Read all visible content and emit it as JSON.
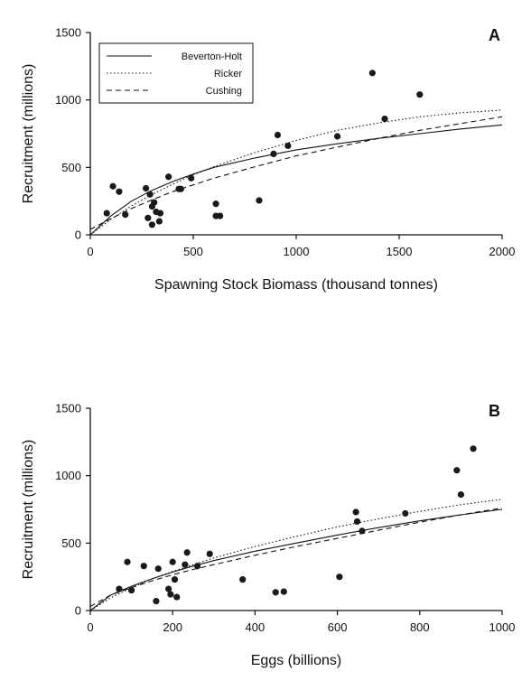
{
  "chart_data": [
    {
      "type": "scatter",
      "panel_label": "A",
      "xlabel": "Spawning Stock Biomass (thousand tonnes)",
      "ylabel": "Recruitment (millions)",
      "xlim": [
        0,
        2000
      ],
      "ylim": [
        0,
        1500
      ],
      "xticks": [
        0,
        500,
        1000,
        1500,
        2000
      ],
      "yticks": [
        0,
        500,
        1000,
        1500
      ],
      "legend": {
        "placement": "top-left",
        "entries": [
          {
            "name": "Beverton-Holt",
            "style": "solid"
          },
          {
            "name": "Ricker",
            "style": "dotted"
          },
          {
            "name": "Cushing",
            "style": "dashed"
          }
        ]
      },
      "points": [
        [
          80,
          160
        ],
        [
          110,
          360
        ],
        [
          140,
          320
        ],
        [
          170,
          150
        ],
        [
          270,
          345
        ],
        [
          280,
          125
        ],
        [
          290,
          300
        ],
        [
          300,
          75
        ],
        [
          300,
          210
        ],
        [
          310,
          240
        ],
        [
          320,
          170
        ],
        [
          335,
          100
        ],
        [
          340,
          160
        ],
        [
          380,
          430
        ],
        [
          430,
          340
        ],
        [
          440,
          340
        ],
        [
          490,
          420
        ],
        [
          610,
          230
        ],
        [
          610,
          140
        ],
        [
          630,
          140
        ],
        [
          820,
          255
        ],
        [
          890,
          600
        ],
        [
          910,
          740
        ],
        [
          960,
          660
        ],
        [
          1200,
          730
        ],
        [
          1370,
          1200
        ],
        [
          1430,
          860
        ],
        [
          1600,
          1040
        ]
      ],
      "curves": [
        {
          "name": "Beverton-Holt",
          "x": [
            0,
            100,
            200,
            300,
            400,
            500,
            600,
            800,
            1000,
            1200,
            1400,
            1600,
            1800,
            2000
          ],
          "y": [
            0,
            140,
            250,
            330,
            395,
            450,
            500,
            570,
            630,
            675,
            715,
            750,
            785,
            815
          ]
        },
        {
          "name": "Ricker",
          "x": [
            0,
            100,
            200,
            300,
            400,
            500,
            600,
            800,
            1000,
            1200,
            1400,
            1600,
            1800,
            2000
          ],
          "y": [
            0,
            115,
            215,
            300,
            375,
            445,
            505,
            610,
            700,
            775,
            830,
            875,
            905,
            925
          ]
        },
        {
          "name": "Cushing",
          "x": [
            0,
            100,
            200,
            300,
            400,
            500,
            600,
            800,
            1000,
            1200,
            1400,
            1600,
            1800,
            2000
          ],
          "y": [
            40,
            120,
            195,
            260,
            320,
            370,
            420,
            505,
            585,
            650,
            715,
            775,
            825,
            875
          ]
        }
      ]
    },
    {
      "type": "scatter",
      "panel_label": "B",
      "xlabel": "Eggs (billions)",
      "ylabel": "Recruitment (millions)",
      "xlim": [
        0,
        1000
      ],
      "ylim": [
        0,
        1500
      ],
      "xticks": [
        0,
        200,
        400,
        600,
        800,
        1000
      ],
      "yticks": [
        0,
        500,
        1000,
        1500
      ],
      "points": [
        [
          70,
          160
        ],
        [
          90,
          360
        ],
        [
          100,
          150
        ],
        [
          130,
          330
        ],
        [
          160,
          70
        ],
        [
          165,
          310
        ],
        [
          190,
          160
        ],
        [
          195,
          120
        ],
        [
          200,
          360
        ],
        [
          205,
          230
        ],
        [
          210,
          100
        ],
        [
          230,
          340
        ],
        [
          235,
          430
        ],
        [
          260,
          330
        ],
        [
          290,
          420
        ],
        [
          370,
          230
        ],
        [
          450,
          135
        ],
        [
          470,
          140
        ],
        [
          605,
          250
        ],
        [
          645,
          730
        ],
        [
          648,
          660
        ],
        [
          660,
          590
        ],
        [
          765,
          720
        ],
        [
          890,
          1040
        ],
        [
          900,
          860
        ],
        [
          930,
          1200
        ]
      ],
      "curves": [
        {
          "name": "Beverton-Holt",
          "x": [
            0,
            50,
            100,
            150,
            200,
            250,
            300,
            400,
            500,
            600,
            700,
            800,
            900,
            1000
          ],
          "y": [
            0,
            115,
            180,
            235,
            285,
            330,
            370,
            440,
            500,
            560,
            615,
            665,
            710,
            750
          ]
        },
        {
          "name": "Ricker",
          "x": [
            0,
            50,
            100,
            150,
            200,
            250,
            300,
            400,
            500,
            600,
            700,
            800,
            900,
            1000
          ],
          "y": [
            0,
            95,
            170,
            235,
            290,
            340,
            390,
            475,
            550,
            620,
            680,
            735,
            785,
            825
          ]
        },
        {
          "name": "Cushing",
          "x": [
            0,
            50,
            100,
            150,
            200,
            250,
            300,
            400,
            500,
            600,
            700,
            800,
            900,
            1000
          ],
          "y": [
            30,
            115,
            170,
            220,
            265,
            305,
            340,
            410,
            475,
            535,
            595,
            655,
            710,
            760
          ]
        }
      ]
    }
  ]
}
